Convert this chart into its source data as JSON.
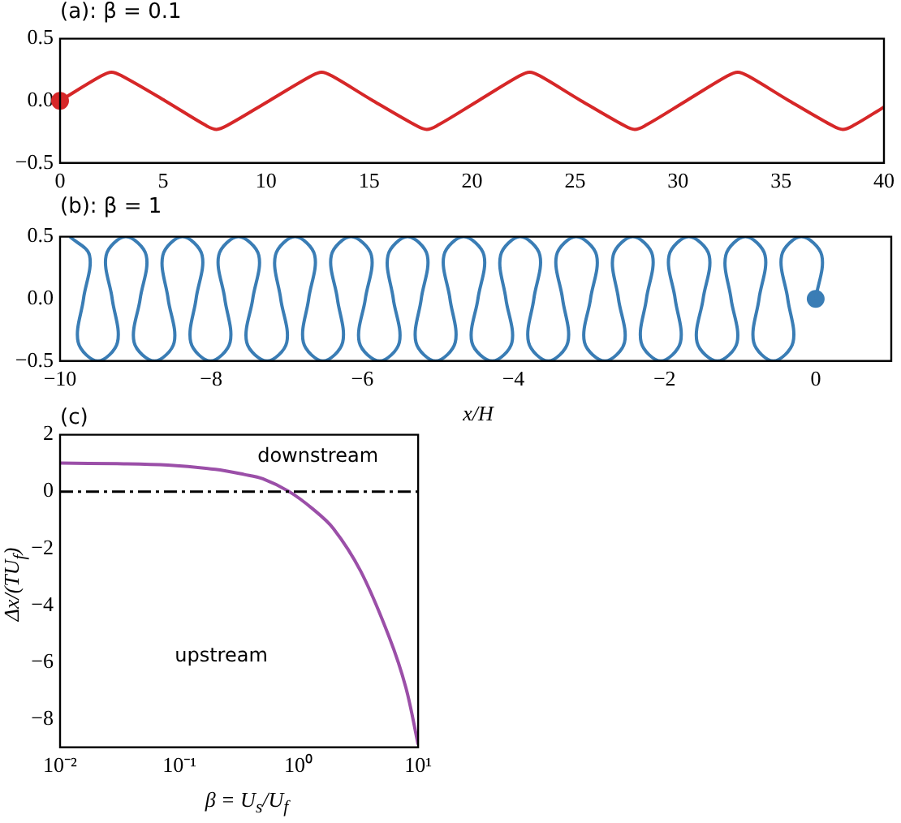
{
  "chart_data": [
    {
      "type": "line",
      "title": "(a): β = 0.1",
      "x": [
        0,
        2.0,
        2.5,
        3.0,
        5.1,
        7.1,
        7.6,
        8.1,
        10.15,
        12.2,
        12.7,
        13.2,
        15.2,
        17.3,
        17.8,
        18.3,
        20.3,
        22.3,
        22.8,
        23.3,
        25.3,
        27.4,
        27.9,
        28.4,
        30.4,
        32.4,
        32.9,
        33.4,
        35.4,
        37.5,
        38.0,
        38.5,
        40
      ],
      "series": [
        {
          "color": "#d62728",
          "values": [
            0,
            0.2,
            0.23,
            0.2,
            0,
            -0.2,
            -0.23,
            -0.2,
            0,
            0.2,
            0.23,
            0.2,
            0,
            -0.2,
            -0.23,
            -0.2,
            0,
            0.2,
            0.23,
            0.2,
            0,
            -0.2,
            -0.23,
            -0.2,
            0,
            0.2,
            0.23,
            0.2,
            0,
            -0.2,
            -0.23,
            -0.2,
            -0.05
          ]
        },
        {
          "type": "scatter",
          "marker": "circle",
          "x": [
            0
          ],
          "color": "#d62728",
          "values": [
            0
          ]
        }
      ],
      "xlim": [
        0,
        40
      ],
      "xticks": [
        0,
        5,
        10,
        15,
        20,
        25,
        30,
        35,
        40
      ],
      "ylim": [
        -0.5,
        0.5
      ],
      "yticks": [
        -0.5,
        {
          "value": 0,
          "label": "0.0"
        },
        0.5
      ],
      "grid": false,
      "legend": false
    },
    {
      "type": "line",
      "title": "(b): β = 1",
      "xlabel": "x/H",
      "x": [
        0,
        0.08,
        -0.19,
        -0.45,
        -0.37,
        -0.3,
        -0.56,
        -0.82,
        -0.75,
        -0.67,
        -0.93,
        -1.19,
        -1.12,
        -1.04,
        -1.3,
        -1.57,
        -1.49,
        -1.41,
        -1.68,
        -1.94,
        -1.86,
        -1.79,
        -2.05,
        -2.31,
        -2.24,
        -2.16,
        -2.42,
        -2.68,
        -2.61,
        -2.53,
        -2.79,
        -3.06,
        -2.98,
        -2.9,
        -3.17,
        -3.43,
        -3.35,
        -3.28,
        -3.54,
        -3.8,
        -3.73,
        -3.65,
        -3.91,
        -4.17,
        -4.1,
        -4.02,
        -4.28,
        -4.55,
        -4.47,
        -4.39,
        -4.66,
        -4.92,
        -4.84,
        -4.77,
        -5.03,
        -5.29,
        -5.22,
        -5.14,
        -5.4,
        -5.66,
        -5.59,
        -5.51,
        -5.77,
        -6.04,
        -5.96,
        -5.88,
        -6.15,
        -6.41,
        -6.33,
        -6.26,
        -6.52,
        -6.78,
        -6.71,
        -6.63,
        -6.89,
        -7.15,
        -7.08,
        -7,
        -7.26,
        -7.53,
        -7.45,
        -7.37,
        -7.64,
        -7.9,
        -7.82,
        -7.75,
        -8.01,
        -8.27,
        -8.2,
        -8.12,
        -8.38,
        -8.64,
        -8.57,
        -8.49,
        -8.75,
        -9.02,
        -8.94,
        -8.86,
        -9.13,
        -9.39,
        -9.31,
        -9.24,
        -9.5,
        -9.76,
        -9.69,
        -9.61,
        -9.87
      ],
      "series": [
        {
          "color": "#3a7db5",
          "values": [
            0,
            0.35,
            0.5,
            0.35,
            0,
            -0.35,
            -0.5,
            -0.35,
            0,
            0.35,
            0.5,
            0.35,
            0,
            -0.35,
            -0.5,
            -0.35,
            0,
            0.35,
            0.5,
            0.35,
            0,
            -0.35,
            -0.5,
            -0.35,
            0,
            0.35,
            0.5,
            0.35,
            0,
            -0.35,
            -0.5,
            -0.35,
            0,
            0.35,
            0.5,
            0.35,
            0,
            -0.35,
            -0.5,
            -0.35,
            0,
            0.35,
            0.5,
            0.35,
            0,
            -0.35,
            -0.5,
            -0.35,
            0,
            0.35,
            0.5,
            0.35,
            0,
            -0.35,
            -0.5,
            -0.35,
            0,
            0.35,
            0.5,
            0.35,
            0,
            -0.35,
            -0.5,
            -0.35,
            0,
            0.35,
            0.5,
            0.35,
            0,
            -0.35,
            -0.5,
            -0.35,
            0,
            0.35,
            0.5,
            0.35,
            0,
            -0.35,
            -0.5,
            -0.35,
            0,
            0.35,
            0.5,
            0.35,
            0,
            -0.35,
            -0.5,
            -0.35,
            0,
            0.35,
            0.5,
            0.35,
            0,
            -0.35,
            -0.5,
            -0.35,
            0,
            0.35,
            0.5,
            0.35,
            0,
            -0.35,
            -0.5,
            -0.35,
            0,
            0.35,
            0.5
          ]
        },
        {
          "type": "scatter",
          "marker": "circle",
          "x": [
            0
          ],
          "color": "#3a7db5",
          "values": [
            0
          ]
        }
      ],
      "xlim": [
        -10,
        1
      ],
      "xticks": [
        -10,
        -8,
        -6,
        -4,
        -2,
        0
      ],
      "ylim": [
        -0.5,
        0.5
      ],
      "yticks": [
        -0.5,
        {
          "value": 0,
          "label": "0.0"
        },
        0.5
      ],
      "grid": false,
      "legend": false
    },
    {
      "type": "line",
      "title": "(c)",
      "xlabel": "β = U$_{s}$/U$_{f}$",
      "ylabel": "Δx/(TU$_{f}$)",
      "log": "x",
      "x": [
        0.01,
        0.03,
        0.08,
        0.2,
        0.35,
        0.5,
        0.83,
        1.3,
        1.95,
        3.3,
        5.7,
        7.9,
        10
      ],
      "series": [
        {
          "color": "#9b4fa8",
          "values": [
            1.0,
            0.98,
            0.93,
            0.78,
            0.6,
            0.45,
            0,
            -0.6,
            -1.3,
            -2.8,
            -5.1,
            -6.9,
            -8.9
          ]
        }
      ],
      "xlim": [
        0.01,
        10
      ],
      "xticks": [
        {
          "value": 0.01,
          "label": "10⁻²"
        },
        {
          "value": 0.1,
          "label": "10⁻¹"
        },
        {
          "value": 1,
          "label": "10⁰"
        },
        {
          "value": 10,
          "label": "10¹"
        }
      ],
      "ylim": [
        -9,
        2
      ],
      "yticks": [
        -8,
        -6,
        -4,
        -2,
        0,
        2
      ],
      "ref_lines": [
        {
          "axis": "y",
          "value": 0,
          "color": "#000000",
          "line_style": "dashdot"
        }
      ],
      "annotations": [
        "downstream",
        "upstream"
      ],
      "grid": false,
      "legend": false
    }
  ]
}
